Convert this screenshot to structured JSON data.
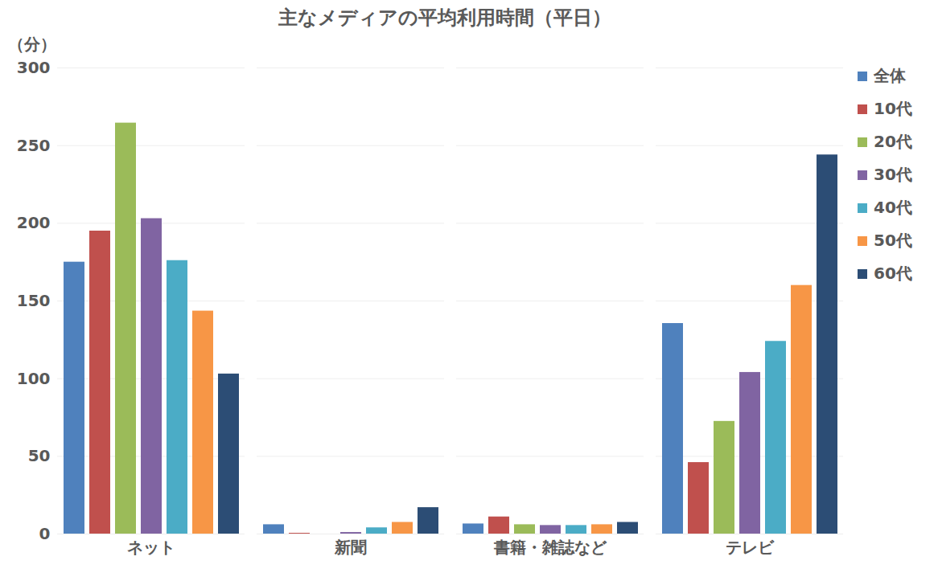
{
  "chart_data": {
    "type": "bar",
    "title": "主なメディアの平均利用時間（平日）",
    "y_label": "（分）",
    "categories": [
      "ネット",
      "新聞",
      "書籍・雑誌など",
      "テレビ"
    ],
    "series": [
      {
        "name": "全体",
        "color": "#4f81bd",
        "values": [
          175,
          6,
          6.5,
          135.5
        ]
      },
      {
        "name": "10代",
        "color": "#c0504d",
        "values": [
          195,
          0.5,
          11,
          46
        ]
      },
      {
        "name": "20代",
        "color": "#9bbb59",
        "values": [
          264.5,
          0,
          6,
          72.5
        ]
      },
      {
        "name": "30代",
        "color": "#8064a2",
        "values": [
          203,
          1,
          5.5,
          104
        ]
      },
      {
        "name": "40代",
        "color": "#4bacc6",
        "values": [
          176,
          4,
          5.5,
          124
        ]
      },
      {
        "name": "50代",
        "color": "#f79646",
        "values": [
          143.5,
          7.5,
          6,
          160
        ]
      },
      {
        "name": "60代",
        "color": "#2c4d75",
        "values": [
          103,
          17,
          7.5,
          244
        ]
      }
    ],
    "ylim": [
      0,
      300
    ],
    "yticks": [
      0,
      50,
      100,
      150,
      200,
      250,
      300
    ],
    "grid": true,
    "legend": "right"
  }
}
